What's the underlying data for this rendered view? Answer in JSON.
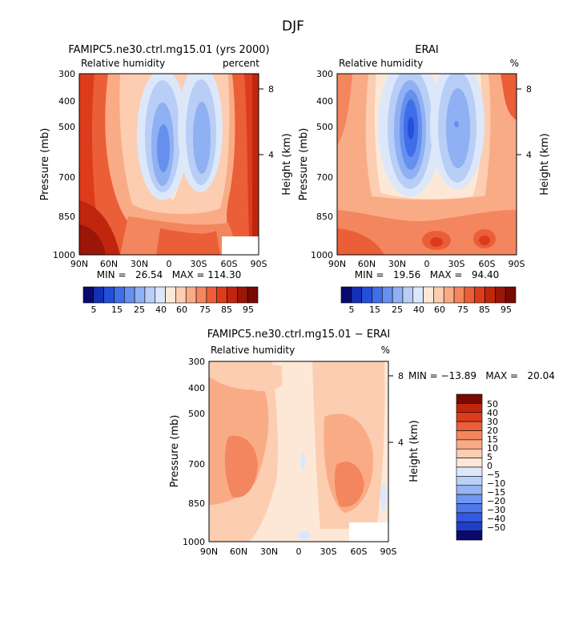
{
  "figure": {
    "title": "DJF"
  },
  "colors": {
    "abs_scale": [
      "#0a0a6e",
      "#1630b4",
      "#2250d8",
      "#3f6ee8",
      "#6690ee",
      "#8fb0f2",
      "#b8cef6",
      "#dce8fa",
      "#fde8d8",
      "#fccdb0",
      "#f9ab86",
      "#f3865e",
      "#ea5e38",
      "#dc3c1c",
      "#c0260e",
      "#9a1608",
      "#780a04"
    ],
    "diff_scale": [
      "#0a0a6e",
      "#1f3ec8",
      "#3558e0",
      "#4f78ea",
      "#7097ef",
      "#95b4f3",
      "#bad0f7",
      "#dce8fa",
      "#fde8d8",
      "#fccdb0",
      "#f9ab86",
      "#f3865e",
      "#ea5e38",
      "#dc3c1c",
      "#c0260e",
      "#780a04"
    ]
  },
  "chart_data": [
    {
      "type": "heatmap",
      "title": "FAMIPC5.ne30.ctrl.mg15.01 (yrs 2000)",
      "subtitle_left": "Relative humidity",
      "subtitle_right": "percent",
      "ylabel": "Pressure (mb)",
      "ylabel_right": "Height (km)",
      "x_ticks": [
        "90N",
        "60N",
        "30N",
        "0",
        "30S",
        "60S",
        "90S"
      ],
      "y_ticks": [
        "300",
        "400",
        "500",
        "700",
        "850",
        "1000"
      ],
      "y_ticks_right": [
        "8",
        "4"
      ],
      "stats": "MIN =   26.54   MAX = 114.30",
      "colorbar_labels": [
        "5",
        "15",
        "25",
        "40",
        "60",
        "75",
        "85",
        "95"
      ],
      "xlim": [
        90,
        -90
      ],
      "ylim": [
        1000,
        300
      ],
      "profile": [
        {
          "lat": 90,
          "p": [
            85,
            85,
            85,
            85,
            90,
            95
          ]
        },
        {
          "lat": 60,
          "p": [
            80,
            80,
            80,
            80,
            85,
            90
          ]
        },
        {
          "lat": 30,
          "p": [
            70,
            60,
            60,
            60,
            75,
            80
          ]
        },
        {
          "lat": 15,
          "p": [
            25,
            25,
            25,
            30,
            60,
            75
          ]
        },
        {
          "lat": 0,
          "p": [
            60,
            60,
            60,
            60,
            75,
            85
          ]
        },
        {
          "lat": -20,
          "p": [
            25,
            25,
            25,
            30,
            60,
            75
          ]
        },
        {
          "lat": -45,
          "p": [
            75,
            70,
            70,
            75,
            80,
            80
          ]
        },
        {
          "lat": -65,
          "p": [
            85,
            85,
            80,
            80,
            85,
            95
          ]
        },
        {
          "lat": -90,
          "p": [
            95,
            95,
            95,
            90,
            95,
            95
          ]
        }
      ]
    },
    {
      "type": "heatmap",
      "title": "ERAI",
      "subtitle_left": "Relative humidity",
      "subtitle_right": "%",
      "ylabel": "Pressure (mb)",
      "ylabel_right": "Height (km)",
      "x_ticks": [
        "90N",
        "60N",
        "30N",
        "0",
        "30S",
        "60S",
        "90S"
      ],
      "y_ticks": [
        "300",
        "400",
        "500",
        "700",
        "850",
        "1000"
      ],
      "y_ticks_right": [
        "8",
        "4"
      ],
      "stats": "MIN =   19.56   MAX =   94.40",
      "colorbar_labels": [
        "5",
        "15",
        "25",
        "40",
        "60",
        "75",
        "85",
        "95"
      ],
      "xlim": [
        90,
        -90
      ],
      "ylim": [
        1000,
        300
      ],
      "profile": [
        {
          "lat": 90,
          "p": [
            75,
            75,
            70,
            70,
            80,
            85
          ]
        },
        {
          "lat": 60,
          "p": [
            70,
            60,
            60,
            60,
            75,
            80
          ]
        },
        {
          "lat": 30,
          "p": [
            60,
            40,
            40,
            40,
            60,
            75
          ]
        },
        {
          "lat": 15,
          "p": [
            15,
            5,
            15,
            25,
            60,
            70
          ]
        },
        {
          "lat": 0,
          "p": [
            60,
            40,
            40,
            60,
            70,
            75
          ]
        },
        {
          "lat": -20,
          "p": [
            25,
            15,
            15,
            25,
            60,
            70
          ]
        },
        {
          "lat": -45,
          "p": [
            60,
            60,
            60,
            60,
            75,
            80
          ]
        },
        {
          "lat": -65,
          "p": [
            75,
            75,
            70,
            75,
            80,
            85
          ]
        },
        {
          "lat": -90,
          "p": [
            85,
            85,
            80,
            80,
            85,
            90
          ]
        }
      ]
    },
    {
      "type": "heatmap",
      "title": "FAMIPC5.ne30.ctrl.mg15.01 − ERAI",
      "subtitle_left": "Relative humidity",
      "subtitle_right": "%",
      "ylabel": "Pressure (mb)",
      "ylabel_right": "Height (km)",
      "x_ticks": [
        "90N",
        "60N",
        "30N",
        "0",
        "30S",
        "60S",
        "90S"
      ],
      "y_ticks": [
        "300",
        "400",
        "500",
        "700",
        "850",
        "1000"
      ],
      "y_ticks_right": [
        "8",
        "4"
      ],
      "stats": "MIN = −13.89   MAX =   20.04",
      "colorbar_labels": [
        "50",
        "40",
        "30",
        "20",
        "15",
        "10",
        "5",
        "0",
        "−5",
        "−10",
        "−15",
        "−20",
        "−30",
        "−40",
        "−50"
      ],
      "xlim": [
        90,
        -90
      ],
      "ylim": [
        1000,
        300
      ],
      "profile": [
        {
          "lat": 90,
          "p": [
            5,
            5,
            5,
            5,
            5,
            5
          ]
        },
        {
          "lat": 60,
          "p": [
            10,
            10,
            10,
            15,
            10,
            5
          ]
        },
        {
          "lat": 30,
          "p": [
            5,
            5,
            5,
            10,
            5,
            0
          ]
        },
        {
          "lat": 0,
          "p": [
            0,
            0,
            0,
            0,
            0,
            0
          ]
        },
        {
          "lat": -30,
          "p": [
            5,
            10,
            10,
            15,
            5,
            0
          ]
        },
        {
          "lat": -50,
          "p": [
            10,
            10,
            10,
            15,
            10,
            5
          ]
        },
        {
          "lat": -75,
          "p": [
            10,
            10,
            10,
            10,
            5,
            5
          ]
        },
        {
          "lat": -90,
          "p": [
            0,
            0,
            0,
            0,
            0,
            0
          ]
        }
      ]
    }
  ]
}
